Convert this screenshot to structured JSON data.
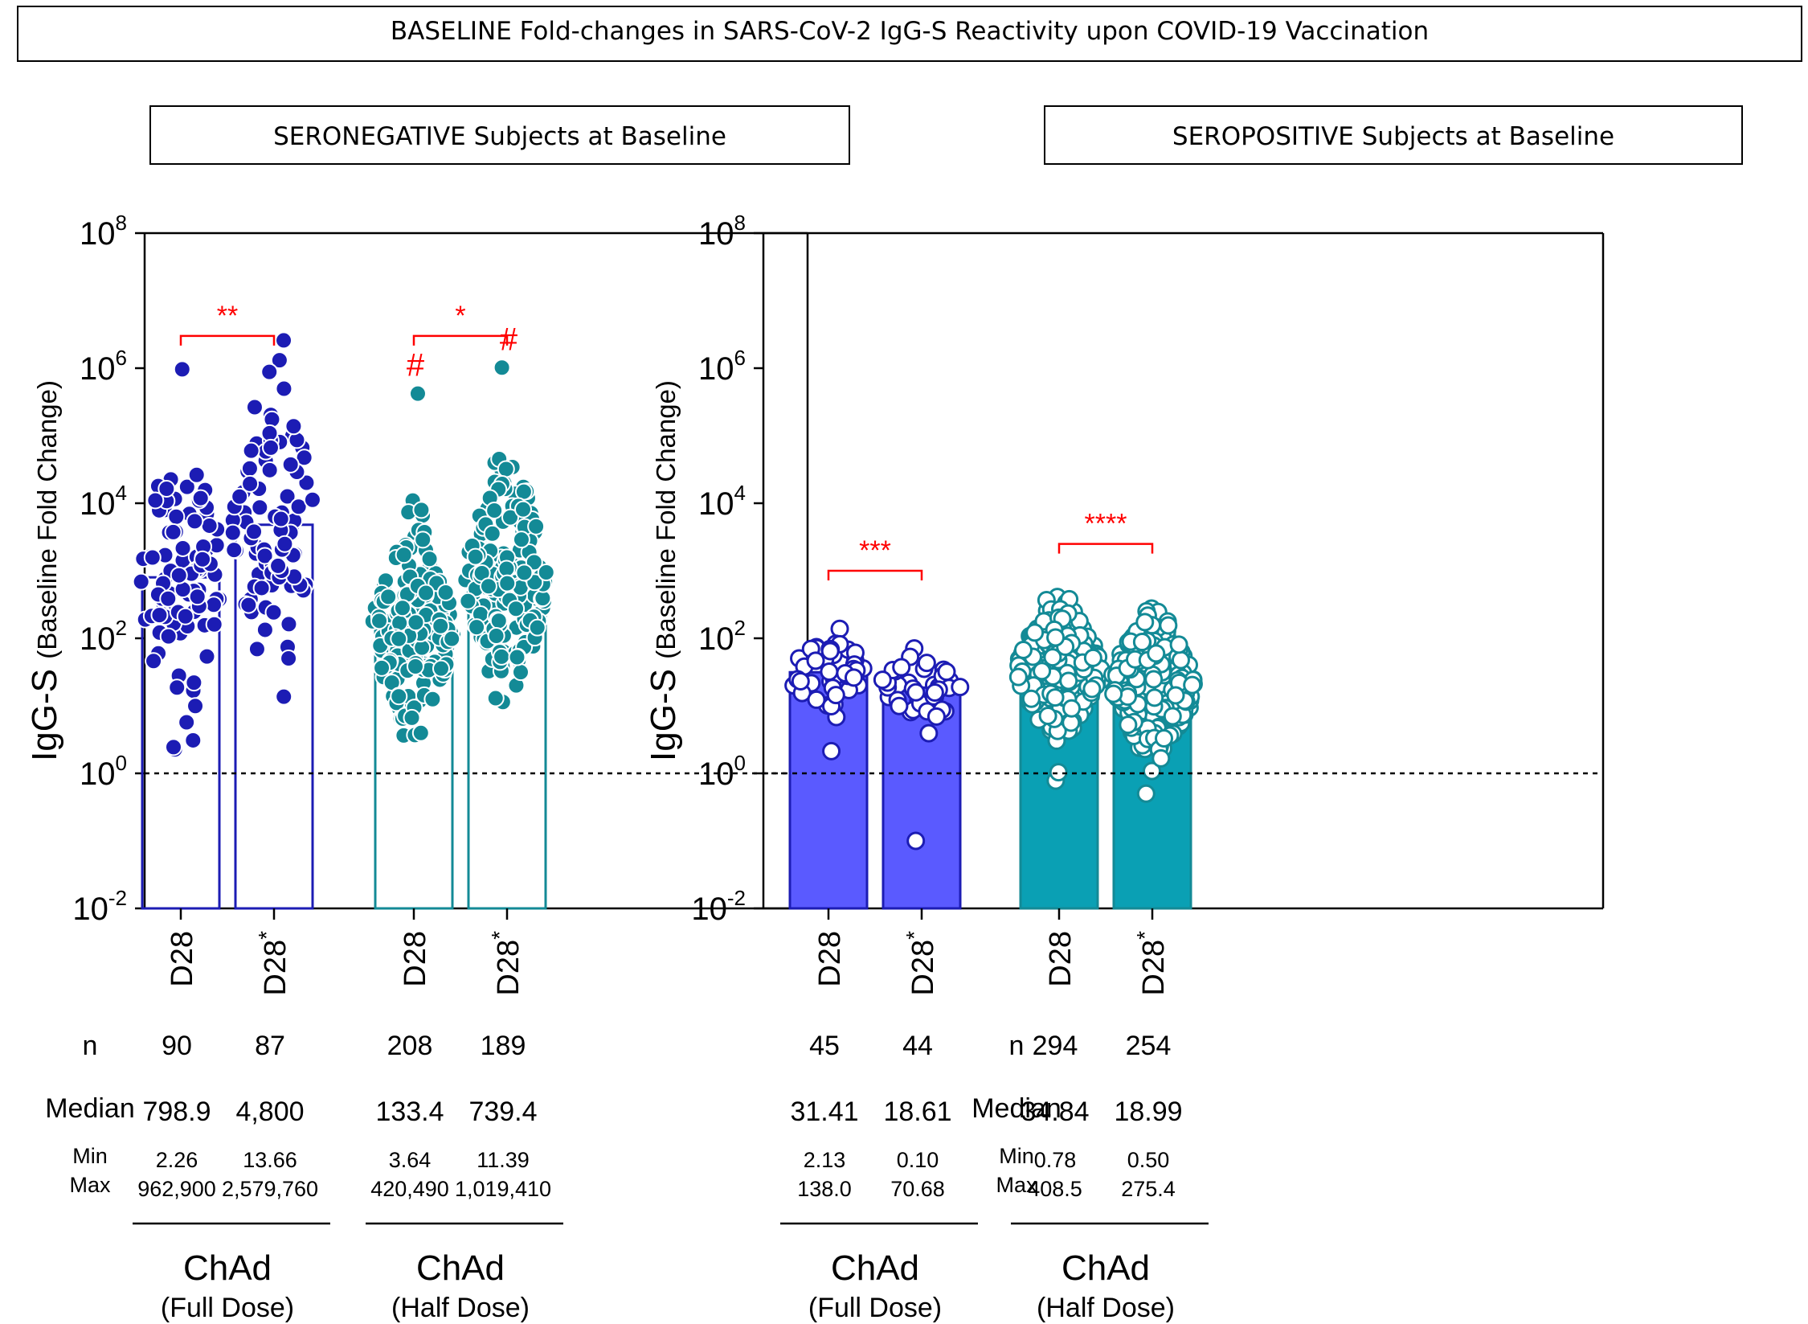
{
  "title": "BASELINE Fold-changes in SARS-CoV-2 IgG-S Reactivity upon COVID-19 Vaccination",
  "ylabel_main": "IgG-S",
  "ylabel_sub": "(Baseline  Fold  Change)",
  "row_labels": {
    "n": "n",
    "median": "Median",
    "min": "Min",
    "max": "Max"
  },
  "colors": {
    "blue": "#1c1cb4",
    "blue_fill": "#5a5aff",
    "teal": "#138a96",
    "teal_fill": "#0aa0b4",
    "sig": "#ff0000"
  },
  "chart_data": [
    {
      "type": "bar",
      "scale": "log10",
      "ylim": [
        0.01,
        100000000
      ],
      "yticks": [
        {
          "b": "10",
          "e": "8"
        },
        {
          "b": "10",
          "e": "6"
        },
        {
          "b": "10",
          "e": "4"
        },
        {
          "b": "10",
          "e": "2"
        },
        {
          "b": "10",
          "e": "0"
        },
        {
          "b": "10",
          "e": "-2"
        }
      ],
      "reference_line": 1,
      "panel_title": "SERONEGATIVE Subjects at Baseline",
      "bars": [
        {
          "label": "D28",
          "star": "",
          "median": 798.9,
          "median_label": "798.9",
          "n": "90",
          "min": "2.26",
          "max": "962,900",
          "min_value": 2.26,
          "max_value": 962900,
          "color": "blue",
          "filled": false,
          "points": "dark"
        },
        {
          "label": "D28",
          "star": "*",
          "median": 4800,
          "median_label": "4,800",
          "n": "87",
          "min": "13.66",
          "max": "2,579,760",
          "min_value": 13.66,
          "max_value": 2579760,
          "color": "blue",
          "filled": false,
          "points": "dark"
        },
        {
          "label": "D28",
          "star": "",
          "median": 133.4,
          "median_label": "133.4",
          "n": "208",
          "min": "3.64",
          "max": "420,490",
          "min_value": 3.64,
          "max_value": 420490,
          "color": "teal",
          "filled": false,
          "points": "dark",
          "hash": "#"
        },
        {
          "label": "D28",
          "star": "*",
          "median": 739.4,
          "median_label": "739.4",
          "n": "189",
          "min": "11.39",
          "max": "1,019,410",
          "min_value": 11.39,
          "max_value": 1019410,
          "color": "teal",
          "filled": false,
          "points": "dark",
          "hash": "#"
        }
      ],
      "brackets": [
        {
          "from": 0,
          "to": 1,
          "label": "**",
          "y": 3000000
        },
        {
          "from": 2,
          "to": 3,
          "label": "*",
          "y": 3000000
        }
      ],
      "groups": [
        {
          "label": "ChAd",
          "sub": "(Full  Dose)"
        },
        {
          "label": "ChAd",
          "sub": "(Half  Dose)"
        }
      ]
    },
    {
      "type": "bar",
      "scale": "log10",
      "ylim": [
        0.01,
        100000000
      ],
      "yticks": [
        {
          "b": "10",
          "e": "8"
        },
        {
          "b": "10",
          "e": "6"
        },
        {
          "b": "10",
          "e": "4"
        },
        {
          "b": "10",
          "e": "2"
        },
        {
          "b": "10",
          "e": "0"
        },
        {
          "b": "10",
          "e": "-2"
        }
      ],
      "reference_line": 1,
      "panel_title": "SEROPOSITIVE Subjects at Baseline",
      "bars": [
        {
          "label": "D28",
          "star": "",
          "median": 31.41,
          "median_label": "31.41",
          "n": "45",
          "min": "2.13",
          "max": "138.0",
          "min_value": 2.13,
          "max_value": 138.0,
          "color": "blue",
          "filled": true,
          "points": "open"
        },
        {
          "label": "D28",
          "star": "*",
          "median": 18.61,
          "median_label": "18.61",
          "n": "44",
          "min": "0.10",
          "max": "70.68",
          "min_value": 0.1,
          "max_value": 70.68,
          "color": "blue",
          "filled": true,
          "points": "open"
        },
        {
          "label": "D28",
          "star": "",
          "median": 34.84,
          "median_label": "34.84",
          "n": "294",
          "min": "0.78",
          "max": "408.5",
          "min_value": 0.78,
          "max_value": 408.5,
          "color": "teal",
          "filled": true,
          "points": "open"
        },
        {
          "label": "D28",
          "star": "*",
          "median": 18.99,
          "median_label": "18.99",
          "n": "254",
          "min": "0.50",
          "max": "275.4",
          "min_value": 0.5,
          "max_value": 275.4,
          "color": "teal",
          "filled": true,
          "points": "open"
        }
      ],
      "brackets": [
        {
          "from": 0,
          "to": 1,
          "label": "***",
          "y": 1000
        },
        {
          "from": 2,
          "to": 3,
          "label": "****",
          "y": 2500
        }
      ],
      "groups": [
        {
          "label": "ChAd",
          "sub": "(Full  Dose)"
        },
        {
          "label": "ChAd",
          "sub": "(Half  Dose)"
        }
      ]
    }
  ]
}
